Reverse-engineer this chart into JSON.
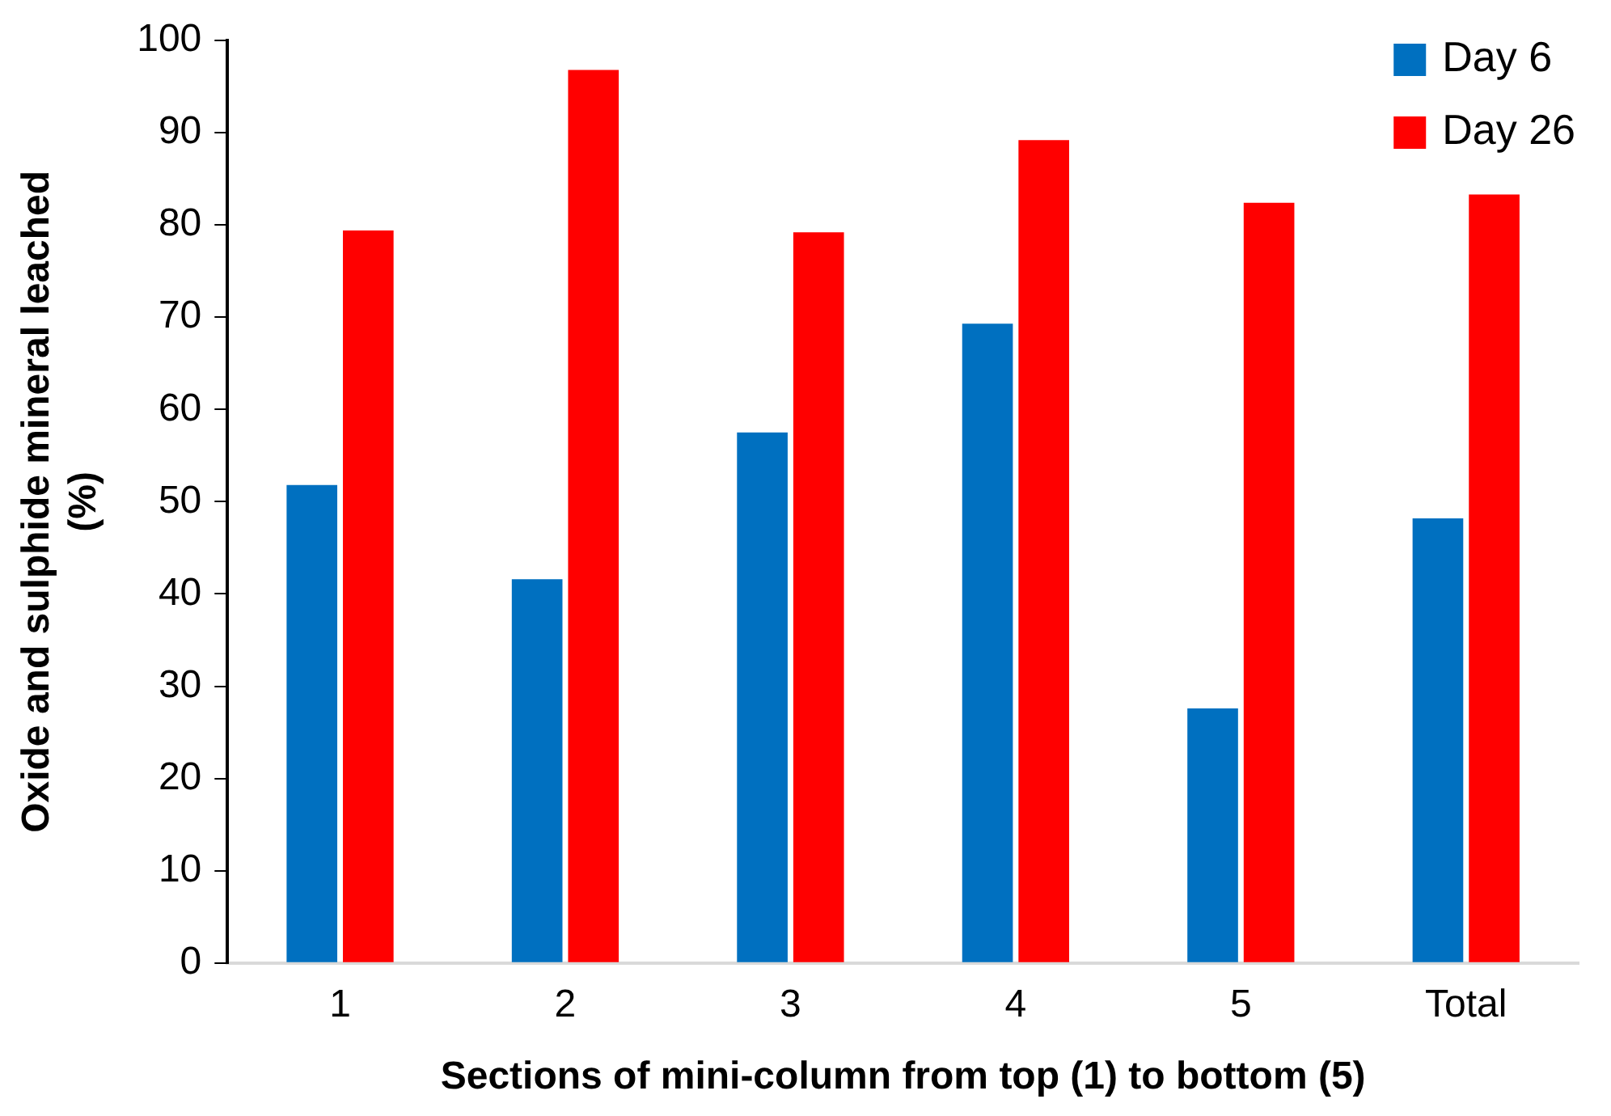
{
  "chart_data": {
    "type": "bar",
    "xlabel": "Sections of mini-column from top (1) to bottom (5)",
    "ylabel": "Oxide and sulphide mineral leached (%)",
    "categories": [
      "1",
      "2",
      "3",
      "4",
      "5",
      "Total"
    ],
    "series": [
      {
        "name": "Day 6",
        "color": "#0070c0",
        "values": [
          51.8,
          41.6,
          57.5,
          69.3,
          27.6,
          48.2
        ]
      },
      {
        "name": "Day 26",
        "color": "#ff0000",
        "values": [
          79.4,
          96.8,
          79.2,
          89.2,
          82.4,
          83.3
        ]
      }
    ],
    "ylim": [
      0,
      100
    ],
    "yticks": [
      0,
      10,
      20,
      30,
      40,
      50,
      60,
      70,
      80,
      90,
      100
    ],
    "grid": false,
    "legend": "top right"
  }
}
